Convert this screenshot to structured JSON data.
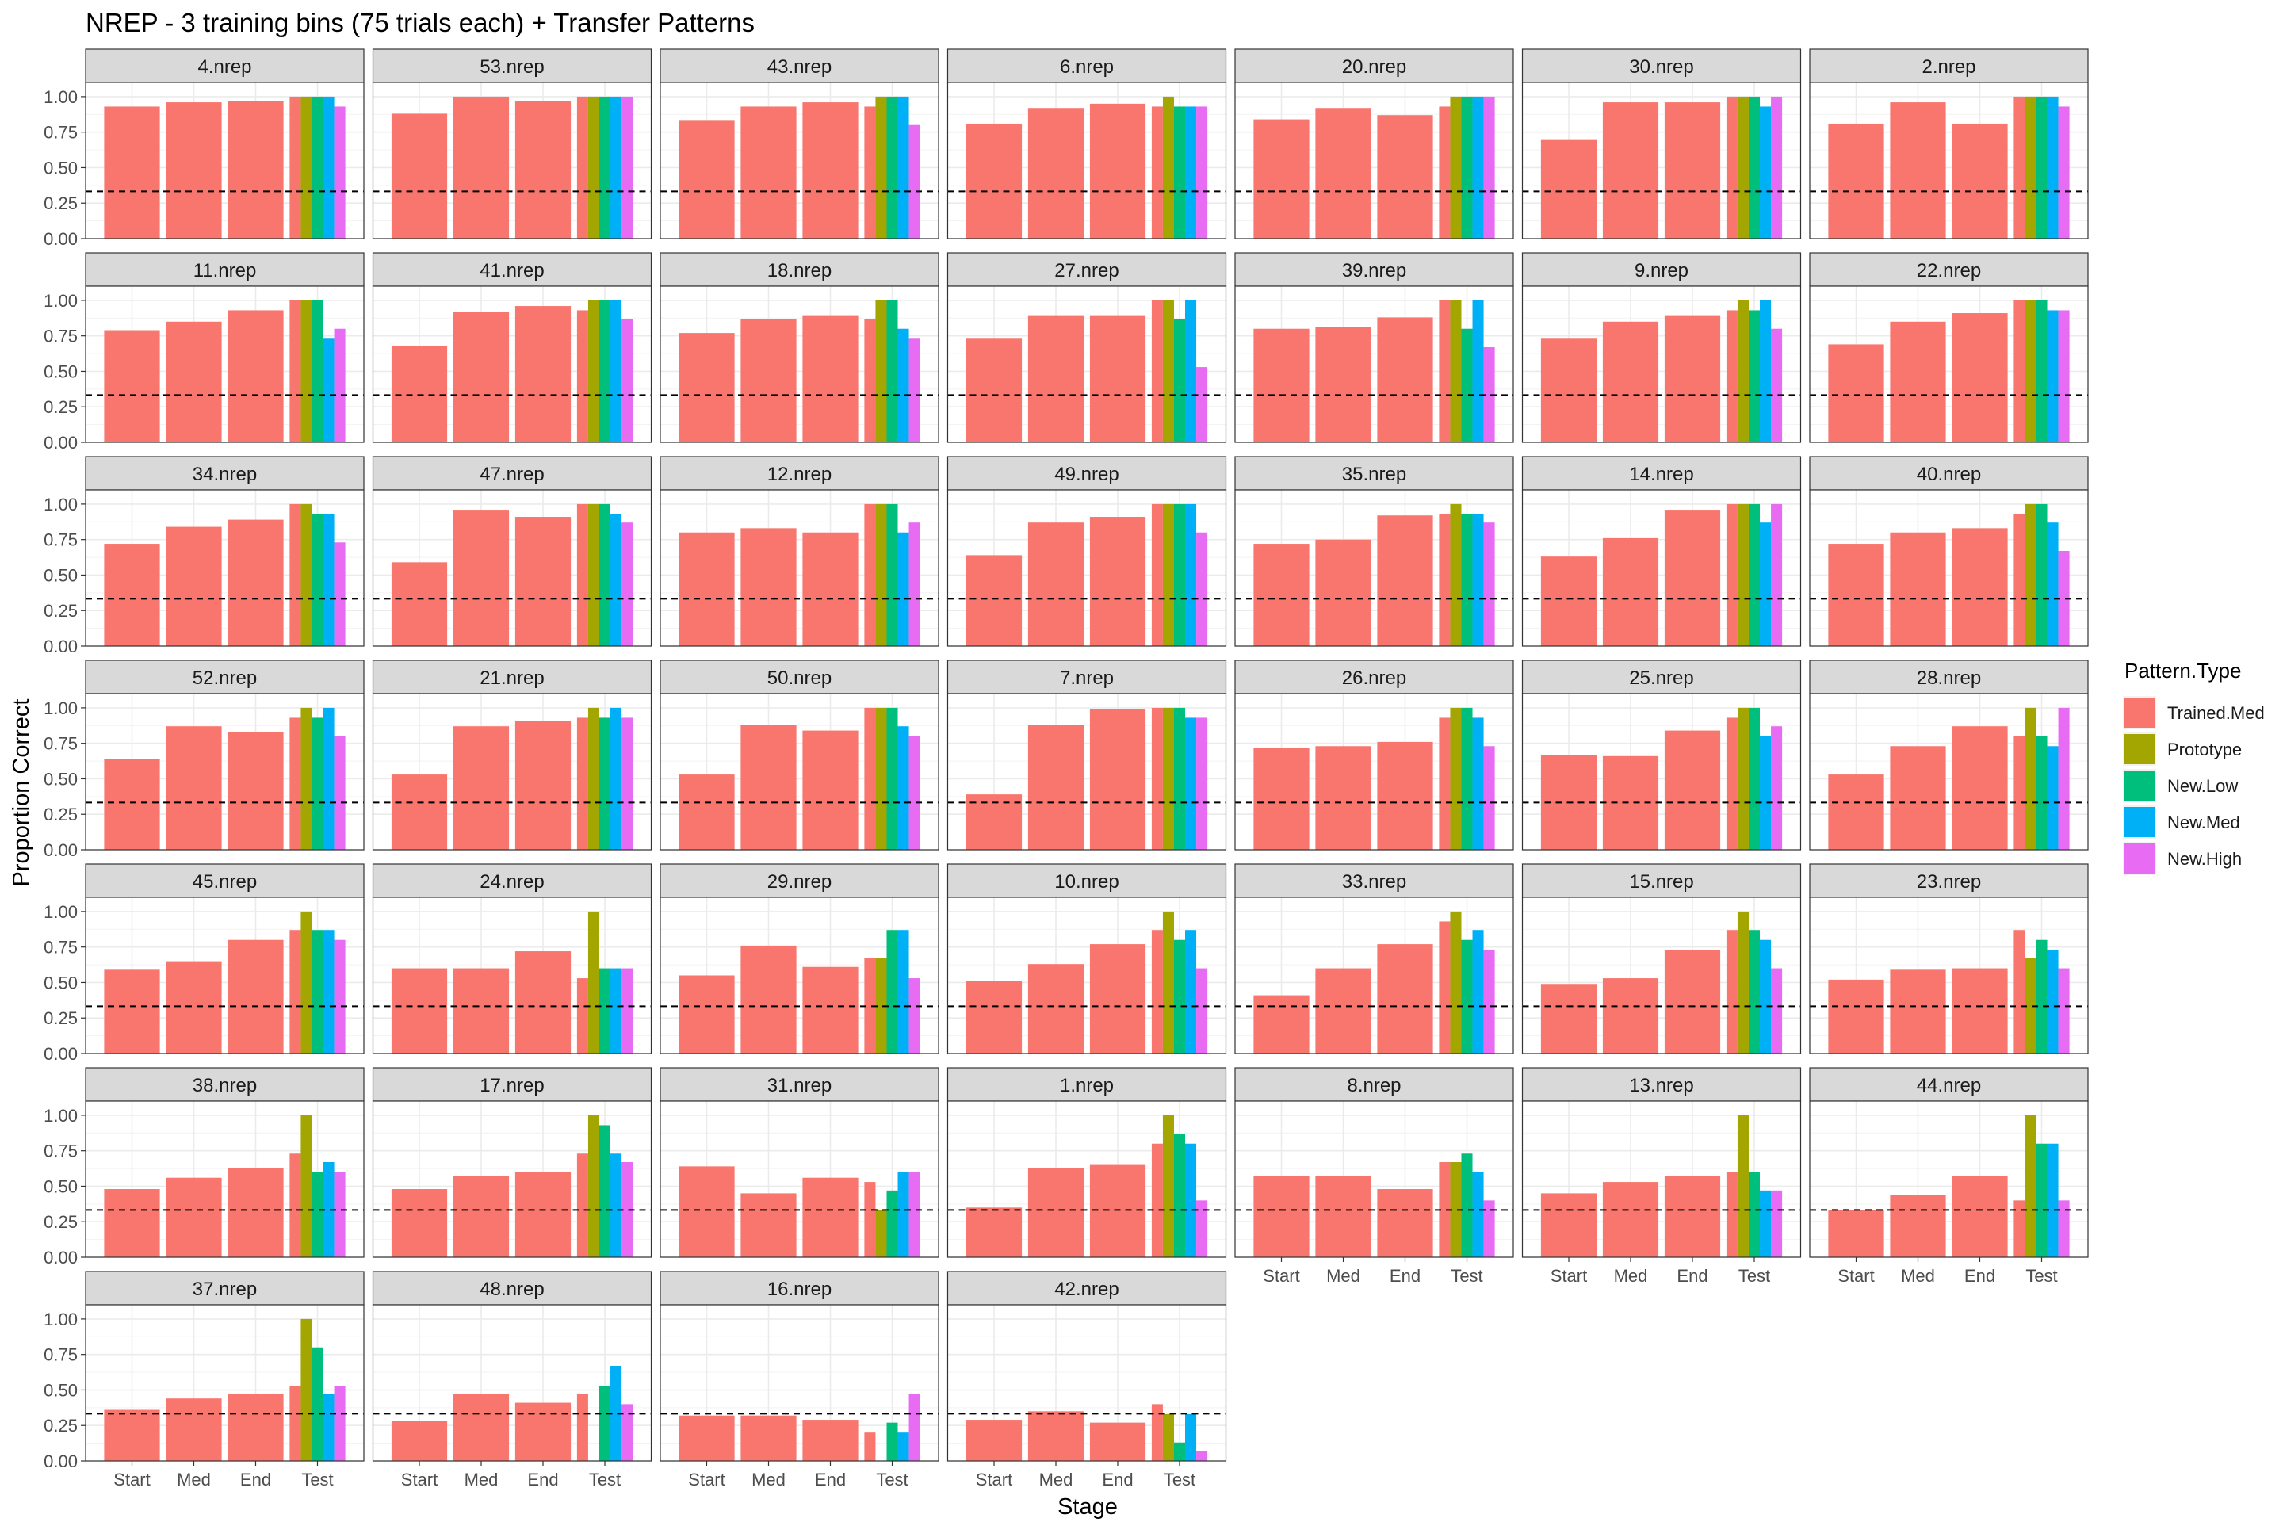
{
  "chart_data": {
    "type": "bar",
    "title": "NREP - 3 training bins (75 trials each) + Transfer Patterns",
    "xlabel": "Stage",
    "ylabel": "Proportion Correct",
    "stages": [
      "Start",
      "Med",
      "End",
      "Test"
    ],
    "ylim": [
      0,
      1.1
    ],
    "yticks": [
      "0.00",
      "0.25",
      "0.50",
      "0.75",
      "1.00"
    ],
    "chance_line": 0.333,
    "grid": true,
    "legend": {
      "title": "Pattern.Type",
      "position": "right",
      "entries": [
        "Trained.Med",
        "Prototype",
        "New.Low",
        "New.Med",
        "New.High"
      ]
    },
    "colors": {
      "Trained.Med": "#F8766D",
      "Prototype": "#A3A500",
      "New.Low": "#00BF7D",
      "New.Med": "#00B0F6",
      "New.High": "#E76BF3"
    },
    "panels": [
      {
        "id": "4.nrep",
        "start": 0.93,
        "med": 0.96,
        "end": 0.97,
        "test": [
          1.0,
          1.0,
          1.0,
          1.0,
          0.93
        ]
      },
      {
        "id": "53.nrep",
        "start": 0.88,
        "med": 1.0,
        "end": 0.97,
        "test": [
          1.0,
          1.0,
          1.0,
          1.0,
          1.0
        ]
      },
      {
        "id": "43.nrep",
        "start": 0.83,
        "med": 0.93,
        "end": 0.96,
        "test": [
          0.93,
          1.0,
          1.0,
          1.0,
          0.8
        ]
      },
      {
        "id": "6.nrep",
        "start": 0.81,
        "med": 0.92,
        "end": 0.95,
        "test": [
          0.93,
          1.0,
          0.93,
          0.93,
          0.93
        ]
      },
      {
        "id": "20.nrep",
        "start": 0.84,
        "med": 0.92,
        "end": 0.87,
        "test": [
          0.93,
          1.0,
          1.0,
          1.0,
          1.0
        ]
      },
      {
        "id": "30.nrep",
        "start": 0.7,
        "med": 0.96,
        "end": 0.96,
        "test": [
          1.0,
          1.0,
          1.0,
          0.93,
          1.0
        ]
      },
      {
        "id": "2.nrep",
        "start": 0.81,
        "med": 0.96,
        "end": 0.81,
        "test": [
          1.0,
          1.0,
          1.0,
          1.0,
          0.93
        ]
      },
      {
        "id": "11.nrep",
        "start": 0.79,
        "med": 0.85,
        "end": 0.93,
        "test": [
          1.0,
          1.0,
          1.0,
          0.73,
          0.8
        ]
      },
      {
        "id": "41.nrep",
        "start": 0.68,
        "med": 0.92,
        "end": 0.96,
        "test": [
          0.93,
          1.0,
          1.0,
          1.0,
          0.87
        ]
      },
      {
        "id": "18.nrep",
        "start": 0.77,
        "med": 0.87,
        "end": 0.89,
        "test": [
          0.87,
          1.0,
          1.0,
          0.8,
          0.73
        ]
      },
      {
        "id": "27.nrep",
        "start": 0.73,
        "med": 0.89,
        "end": 0.89,
        "test": [
          1.0,
          1.0,
          0.87,
          1.0,
          0.53
        ]
      },
      {
        "id": "39.nrep",
        "start": 0.8,
        "med": 0.81,
        "end": 0.88,
        "test": [
          1.0,
          1.0,
          0.8,
          1.0,
          0.67
        ]
      },
      {
        "id": "9.nrep",
        "start": 0.73,
        "med": 0.85,
        "end": 0.89,
        "test": [
          0.93,
          1.0,
          0.93,
          1.0,
          0.8
        ]
      },
      {
        "id": "22.nrep",
        "start": 0.69,
        "med": 0.85,
        "end": 0.91,
        "test": [
          1.0,
          1.0,
          1.0,
          0.93,
          0.93
        ]
      },
      {
        "id": "34.nrep",
        "start": 0.72,
        "med": 0.84,
        "end": 0.89,
        "test": [
          1.0,
          1.0,
          0.93,
          0.93,
          0.73
        ]
      },
      {
        "id": "47.nrep",
        "start": 0.59,
        "med": 0.96,
        "end": 0.91,
        "test": [
          1.0,
          1.0,
          1.0,
          0.93,
          0.87
        ]
      },
      {
        "id": "12.nrep",
        "start": 0.8,
        "med": 0.83,
        "end": 0.8,
        "test": [
          1.0,
          1.0,
          1.0,
          0.8,
          0.87
        ]
      },
      {
        "id": "49.nrep",
        "start": 0.64,
        "med": 0.87,
        "end": 0.91,
        "test": [
          1.0,
          1.0,
          1.0,
          1.0,
          0.8
        ]
      },
      {
        "id": "35.nrep",
        "start": 0.72,
        "med": 0.75,
        "end": 0.92,
        "test": [
          0.93,
          1.0,
          0.93,
          0.93,
          0.87
        ]
      },
      {
        "id": "14.nrep",
        "start": 0.63,
        "med": 0.76,
        "end": 0.96,
        "test": [
          1.0,
          1.0,
          1.0,
          0.87,
          1.0
        ]
      },
      {
        "id": "40.nrep",
        "start": 0.72,
        "med": 0.8,
        "end": 0.83,
        "test": [
          0.93,
          1.0,
          1.0,
          0.87,
          0.67
        ]
      },
      {
        "id": "52.nrep",
        "start": 0.64,
        "med": 0.87,
        "end": 0.83,
        "test": [
          0.93,
          1.0,
          0.93,
          1.0,
          0.8
        ]
      },
      {
        "id": "21.nrep",
        "start": 0.53,
        "med": 0.87,
        "end": 0.91,
        "test": [
          0.93,
          1.0,
          0.93,
          1.0,
          0.93
        ]
      },
      {
        "id": "50.nrep",
        "start": 0.53,
        "med": 0.88,
        "end": 0.84,
        "test": [
          1.0,
          1.0,
          1.0,
          0.87,
          0.8
        ]
      },
      {
        "id": "7.nrep",
        "start": 0.39,
        "med": 0.88,
        "end": 0.99,
        "test": [
          1.0,
          1.0,
          1.0,
          0.93,
          0.93
        ]
      },
      {
        "id": "26.nrep",
        "start": 0.72,
        "med": 0.73,
        "end": 0.76,
        "test": [
          0.93,
          1.0,
          1.0,
          0.93,
          0.73
        ]
      },
      {
        "id": "25.nrep",
        "start": 0.67,
        "med": 0.66,
        "end": 0.84,
        "test": [
          0.93,
          1.0,
          1.0,
          0.8,
          0.87
        ]
      },
      {
        "id": "28.nrep",
        "start": 0.53,
        "med": 0.73,
        "end": 0.87,
        "test": [
          0.8,
          1.0,
          0.8,
          0.73,
          1.0
        ]
      },
      {
        "id": "45.nrep",
        "start": 0.59,
        "med": 0.65,
        "end": 0.8,
        "test": [
          0.87,
          1.0,
          0.87,
          0.87,
          0.8
        ]
      },
      {
        "id": "24.nrep",
        "start": 0.6,
        "med": 0.6,
        "end": 0.72,
        "test": [
          0.53,
          1.0,
          0.6,
          0.6,
          0.6
        ]
      },
      {
        "id": "29.nrep",
        "start": 0.55,
        "med": 0.76,
        "end": 0.61,
        "test": [
          0.67,
          0.67,
          0.87,
          0.87,
          0.53
        ]
      },
      {
        "id": "10.nrep",
        "start": 0.51,
        "med": 0.63,
        "end": 0.77,
        "test": [
          0.87,
          1.0,
          0.8,
          0.87,
          0.6
        ]
      },
      {
        "id": "33.nrep",
        "start": 0.41,
        "med": 0.6,
        "end": 0.77,
        "test": [
          0.93,
          1.0,
          0.8,
          0.87,
          0.73
        ]
      },
      {
        "id": "15.nrep",
        "start": 0.49,
        "med": 0.53,
        "end": 0.73,
        "test": [
          0.87,
          1.0,
          0.87,
          0.8,
          0.6
        ]
      },
      {
        "id": "23.nrep",
        "start": 0.52,
        "med": 0.59,
        "end": 0.6,
        "test": [
          0.87,
          0.67,
          0.8,
          0.73,
          0.6
        ]
      },
      {
        "id": "38.nrep",
        "start": 0.48,
        "med": 0.56,
        "end": 0.63,
        "test": [
          0.73,
          1.0,
          0.6,
          0.67,
          0.6
        ]
      },
      {
        "id": "17.nrep",
        "start": 0.48,
        "med": 0.57,
        "end": 0.6,
        "test": [
          0.73,
          1.0,
          0.93,
          0.73,
          0.67
        ]
      },
      {
        "id": "31.nrep",
        "start": 0.64,
        "med": 0.45,
        "end": 0.56,
        "test": [
          0.53,
          0.33,
          0.47,
          0.6,
          0.6
        ]
      },
      {
        "id": "1.nrep",
        "start": 0.35,
        "med": 0.63,
        "end": 0.65,
        "test": [
          0.8,
          1.0,
          0.87,
          0.8,
          0.4
        ]
      },
      {
        "id": "8.nrep",
        "start": 0.57,
        "med": 0.57,
        "end": 0.48,
        "test": [
          0.67,
          0.67,
          0.73,
          0.6,
          0.4
        ]
      },
      {
        "id": "13.nrep",
        "start": 0.45,
        "med": 0.53,
        "end": 0.57,
        "test": [
          0.6,
          1.0,
          0.6,
          0.47,
          0.47
        ]
      },
      {
        "id": "44.nrep",
        "start": 0.33,
        "med": 0.44,
        "end": 0.57,
        "test": [
          0.4,
          1.0,
          0.8,
          0.8,
          0.4
        ]
      },
      {
        "id": "37.nrep",
        "start": 0.36,
        "med": 0.44,
        "end": 0.47,
        "test": [
          0.53,
          1.0,
          0.8,
          0.47,
          0.53
        ]
      },
      {
        "id": "48.nrep",
        "start": 0.28,
        "med": 0.47,
        "end": 0.41,
        "test": [
          0.47,
          0.0,
          0.53,
          0.67,
          0.4
        ]
      },
      {
        "id": "16.nrep",
        "start": 0.32,
        "med": 0.32,
        "end": 0.29,
        "test": [
          0.2,
          0.0,
          0.27,
          0.2,
          0.47
        ]
      },
      {
        "id": "42.nrep",
        "start": 0.29,
        "med": 0.35,
        "end": 0.27,
        "test": [
          0.4,
          0.33,
          0.13,
          0.33,
          0.07
        ]
      }
    ]
  }
}
